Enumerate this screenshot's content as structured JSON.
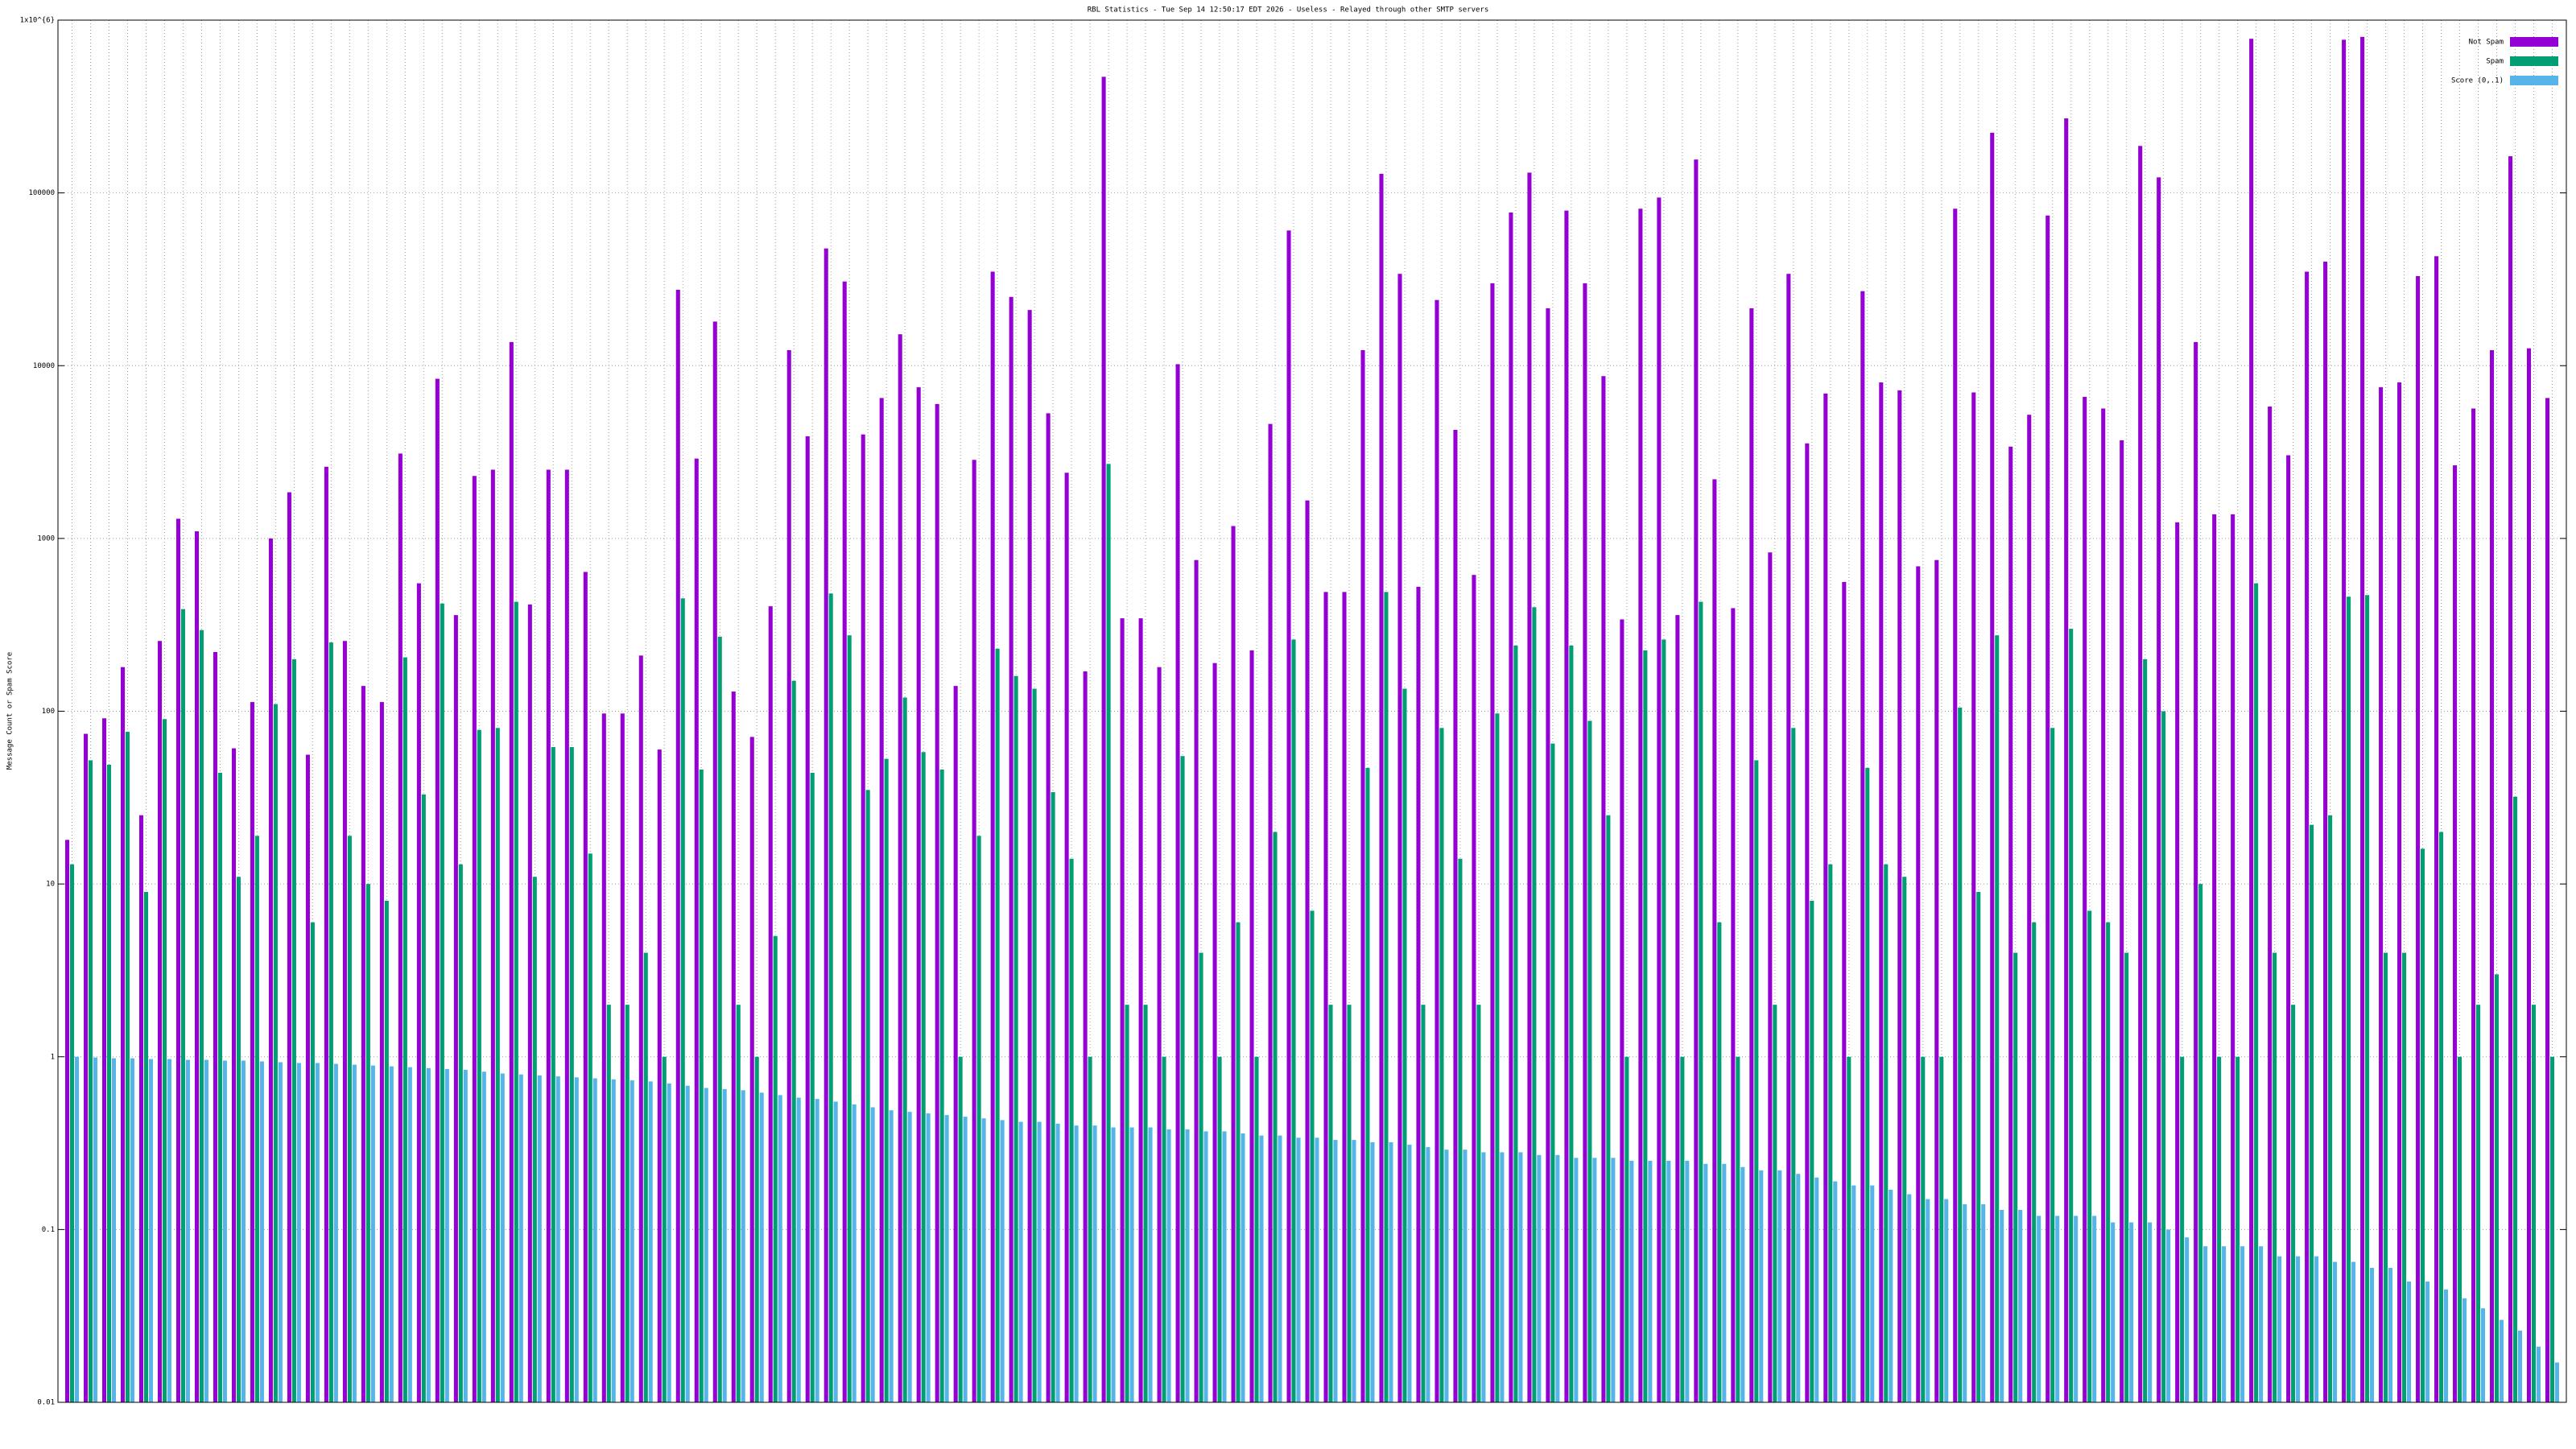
{
  "chart_data": {
    "type": "bar",
    "title": "RBL Statistics - Tue Sep 14 12:50:17 EDT 2026 - Useless - Relayed through other SMTP servers",
    "y_label": "Message Count or Spam Score",
    "log_scale": true,
    "grid": true,
    "legend": "top-right",
    "ylim": [
      0.01,
      1000000
    ],
    "yticks": [
      0.01,
      0.1,
      1,
      10,
      100,
      1000,
      10000,
      100000,
      {
        "value": 1000000,
        "label": "1x10^{6}"
      }
    ],
    "categories": [
      null,
      null,
      null,
      null,
      null,
      null,
      null,
      null,
      null,
      null,
      null,
      null,
      null,
      null,
      null,
      null,
      null,
      null,
      null,
      null,
      null,
      null,
      null,
      null,
      null,
      null,
      null,
      null,
      null,
      null,
      null,
      null,
      null,
      null,
      null,
      null,
      null,
      null,
      null,
      null,
      null,
      null,
      null,
      null,
      null,
      null,
      null,
      null,
      null,
      null,
      null,
      null,
      null,
      null,
      null,
      null,
      null,
      null,
      null,
      null,
      null,
      null,
      null,
      null,
      null,
      null,
      null,
      null,
      null,
      null,
      null,
      null,
      null,
      null,
      null,
      null,
      null,
      null,
      null,
      null,
      null,
      null,
      null,
      null,
      null,
      null,
      null,
      null,
      null,
      null,
      null,
      null,
      null,
      null,
      null,
      null,
      null,
      null,
      null,
      null,
      null,
      null,
      null,
      null,
      null,
      null,
      null,
      null,
      null,
      null,
      null,
      null,
      null,
      null,
      null,
      null,
      null,
      null,
      null,
      null,
      null,
      null,
      null,
      null,
      null,
      null,
      null,
      null,
      null,
      null,
      null,
      null,
      null,
      null,
      null
    ],
    "series": [
      {
        "name": "Not Spam",
        "color": "#9400d3",
        "values": [
          18,
          74,
          91,
          180,
          25,
          255,
          1300,
          1100,
          220,
          61,
          113,
          1000,
          1850,
          56,
          2600,
          255,
          140,
          113,
          3100,
          550,
          8400,
          360,
          2300,
          2500,
          13700,
          415,
          2500,
          2500,
          640,
          97,
          97,
          210,
          60,
          27500,
          2900,
          18000,
          130,
          71,
          405,
          12300,
          3900,
          47700,
          30700,
          4000,
          6500,
          15200,
          7500,
          6000,
          140,
          2850,
          35000,
          25000,
          21000,
          5300,
          2400,
          170,
          470000,
          345,
          345,
          180,
          10200,
          750,
          190,
          1180,
          225,
          4600,
          60600,
          1660,
          490,
          490,
          12300,
          129000,
          34000,
          525,
          24000,
          4250,
          615,
          30000,
          77000,
          131000,
          21500,
          79000,
          30000,
          8700,
          340,
          81000,
          94000,
          360,
          156000,
          2200,
          395,
          21500,
          830,
          34000,
          3550,
          6900,
          560,
          27000,
          8000,
          7200,
          690,
          750,
          81000,
          7000,
          223000,
          3400,
          5200,
          74000,
          270000,
          6600,
          5650,
          3700,
          187000,
          123000,
          1240,
          13700,
          1380,
          1380,
          780000,
          5800,
          3030,
          35000,
          40000,
          770000,
          800000,
          7500,
          8000,
          33000,
          43000,
          2650,
          5650,
          12300,
          163000,
          12600,
          6500
        ]
      },
      {
        "name": "Spam",
        "color": "#009e73",
        "values": [
          13,
          52,
          49,
          76,
          9,
          90,
          390,
          295,
          44,
          11,
          19,
          110,
          200,
          6,
          250,
          19,
          10,
          8,
          205,
          33,
          420,
          13,
          78,
          80,
          430,
          11,
          62,
          62,
          15,
          2,
          2,
          4,
          1,
          450,
          46,
          270,
          2,
          1,
          5,
          150,
          44,
          480,
          275,
          35,
          53,
          120,
          58,
          46,
          1,
          19,
          230,
          160,
          135,
          34,
          14,
          1,
          2700,
          2,
          2,
          1,
          55,
          4,
          1,
          6,
          1,
          20,
          260,
          7,
          2,
          2,
          47,
          490,
          135,
          2,
          80,
          14,
          2,
          97,
          240,
          400,
          65,
          240,
          88,
          25,
          1,
          225,
          260,
          1,
          430,
          6,
          1,
          52,
          2,
          80,
          8,
          13,
          1,
          47,
          13,
          11,
          1,
          1,
          105,
          9,
          275,
          4,
          6,
          80,
          300,
          7,
          6,
          4,
          200,
          100,
          1,
          10,
          1,
          1,
          550,
          4,
          2,
          22,
          25,
          460,
          470,
          4,
          4,
          16,
          20,
          1,
          2,
          3,
          32,
          2,
          1
        ]
      },
      {
        "name": "Score (0,.1)",
        "color": "#56b4e9",
        "values": [
          1.0,
          0.99,
          0.98,
          0.98,
          0.97,
          0.97,
          0.96,
          0.96,
          0.95,
          0.95,
          0.94,
          0.93,
          0.92,
          0.92,
          0.91,
          0.9,
          0.89,
          0.88,
          0.87,
          0.86,
          0.85,
          0.84,
          0.82,
          0.8,
          0.79,
          0.78,
          0.77,
          0.76,
          0.75,
          0.74,
          0.73,
          0.72,
          0.7,
          0.68,
          0.66,
          0.65,
          0.64,
          0.62,
          0.6,
          0.58,
          0.57,
          0.55,
          0.53,
          0.51,
          0.49,
          0.48,
          0.47,
          0.46,
          0.45,
          0.44,
          0.43,
          0.42,
          0.42,
          0.41,
          0.4,
          0.4,
          0.39,
          0.39,
          0.39,
          0.38,
          0.38,
          0.37,
          0.37,
          0.36,
          0.35,
          0.35,
          0.34,
          0.34,
          0.33,
          0.33,
          0.32,
          0.32,
          0.31,
          0.3,
          0.29,
          0.29,
          0.28,
          0.28,
          0.28,
          0.27,
          0.27,
          0.26,
          0.26,
          0.26,
          0.25,
          0.25,
          0.25,
          0.25,
          0.24,
          0.24,
          0.23,
          0.22,
          0.22,
          0.21,
          0.2,
          0.19,
          0.18,
          0.18,
          0.17,
          0.16,
          0.15,
          0.15,
          0.14,
          0.14,
          0.13,
          0.13,
          0.12,
          0.12,
          0.12,
          0.12,
          0.11,
          0.11,
          0.11,
          0.1,
          0.09,
          0.08,
          0.08,
          0.08,
          0.08,
          0.07,
          0.07,
          0.07,
          0.065,
          0.065,
          0.06,
          0.06,
          0.05,
          0.05,
          0.045,
          0.04,
          0.035,
          0.03,
          0.026,
          0.021,
          0.017
        ]
      }
    ]
  }
}
